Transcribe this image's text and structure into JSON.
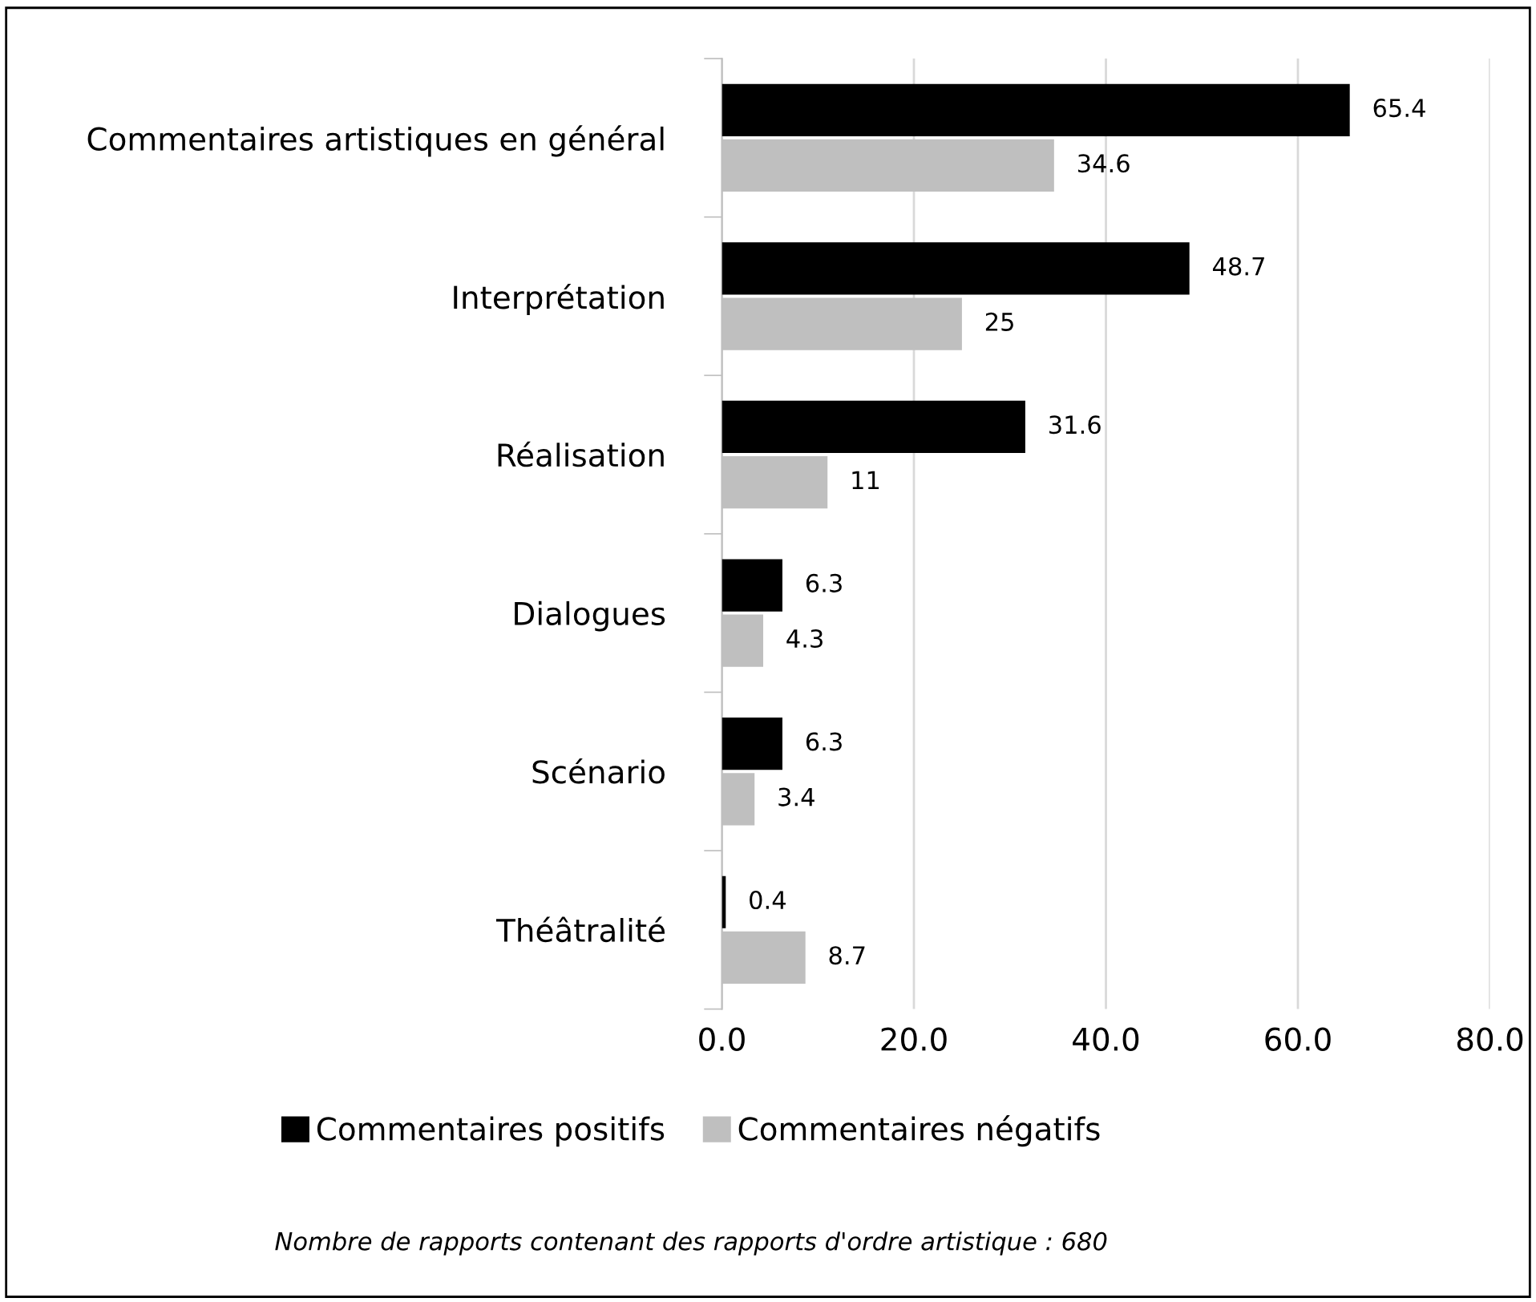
{
  "chart_data": {
    "type": "bar",
    "orientation": "horizontal",
    "categories": [
      "Commentaires artistiques en général",
      "Interprétation",
      "Réalisation",
      "Dialogues",
      "Scénario",
      "Théâtralité"
    ],
    "series": [
      {
        "name": "Commentaires positifs",
        "color": "#000000",
        "values": [
          65.4,
          48.7,
          31.6,
          6.3,
          6.3,
          0.4
        ]
      },
      {
        "name": "Commentaires négatifs",
        "color": "#bfbfbf",
        "values": [
          34.6,
          25,
          11,
          4.3,
          3.4,
          8.7
        ]
      }
    ],
    "xlim": [
      0,
      80
    ],
    "xticks": [
      {
        "value": 0,
        "label": "0.0"
      },
      {
        "value": 20,
        "label": "20.0"
      },
      {
        "value": 40,
        "label": "40.0"
      },
      {
        "value": 60,
        "label": "60.0"
      },
      {
        "value": 80,
        "label": "80.0"
      }
    ],
    "grid": "x",
    "legend": "bottom",
    "data_labels": true,
    "annotations": [
      "Nombre de rapports contenant des rapports d'ordre artistique : 680"
    ]
  }
}
